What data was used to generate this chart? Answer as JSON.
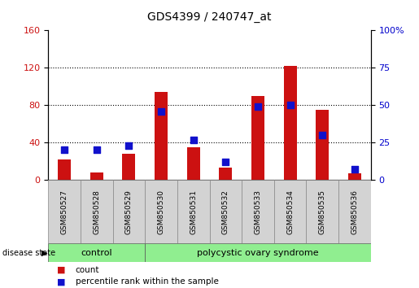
{
  "title": "GDS4399 / 240747_at",
  "samples": [
    "GSM850527",
    "GSM850528",
    "GSM850529",
    "GSM850530",
    "GSM850531",
    "GSM850532",
    "GSM850533",
    "GSM850534",
    "GSM850535",
    "GSM850536"
  ],
  "counts": [
    22,
    8,
    28,
    94,
    35,
    13,
    90,
    122,
    75,
    7
  ],
  "percentiles": [
    20,
    20,
    23,
    46,
    27,
    12,
    49,
    50,
    30,
    7
  ],
  "left_ylim": [
    0,
    160
  ],
  "right_ylim": [
    0,
    100
  ],
  "left_yticks": [
    0,
    40,
    80,
    120,
    160
  ],
  "right_yticks": [
    0,
    25,
    50,
    75,
    100
  ],
  "bar_color": "#cc1111",
  "dot_color": "#1111cc",
  "bg_color": "#ffffff",
  "tick_area_color": "#d3d3d3",
  "green_color": "#90ee90",
  "control_label": "control",
  "pcos_label": "polycystic ovary syndrome",
  "disease_state_label": "disease state",
  "legend_count": "count",
  "legend_percentile": "percentile rank within the sample",
  "control_samples": 3,
  "total_samples": 10,
  "left_tick_color": "#cc1111",
  "right_tick_color": "#0000cc",
  "dotted_grid_lines": [
    40,
    80,
    120
  ]
}
